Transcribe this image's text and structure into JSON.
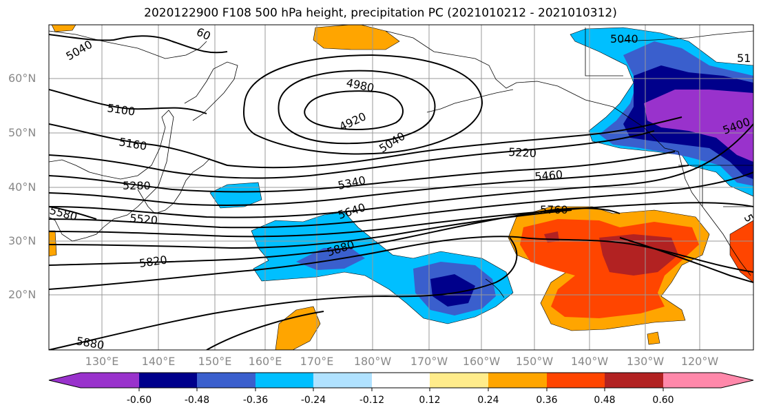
{
  "title": "2020122900 F108 500 hPa height, precipitation PC (2021010212 - 2021010312)",
  "lat_labels": [
    "60°N",
    "50°N",
    "40°N",
    "30°N",
    "20°N"
  ],
  "lon_labels": [
    "130°E",
    "140°E",
    "150°E",
    "160°E",
    "170°E",
    "180°W",
    "170°W",
    "160°W",
    "150°W",
    "140°W",
    "130°W",
    "120°W"
  ],
  "contour_labels": [
    "5040",
    "5100",
    "5160",
    "5280",
    "5580",
    "5520",
    "5820",
    "5880",
    "4980",
    "4920",
    "5040",
    "5340",
    "5640",
    "5880",
    "5220",
    "5460",
    "5760",
    "5040",
    "5400",
    "60",
    "51",
    "5"
  ],
  "colorbar": {
    "ticks": [
      "-0.60",
      "-0.48",
      "-0.36",
      "-0.24",
      "-0.12",
      "0.12",
      "0.24",
      "0.36",
      "0.48",
      "0.60"
    ],
    "colors": [
      "#9932cc",
      "#00008b",
      "#3a5fcd",
      "#00bfff",
      "#b0e2ff",
      "#ffffff",
      "#ffec8b",
      "#ffa500",
      "#ff4500",
      "#b22222",
      "#ff88aa"
    ]
  },
  "colors": {
    "contour": "#000000",
    "grid": "#999999",
    "coast": "#000000"
  }
}
